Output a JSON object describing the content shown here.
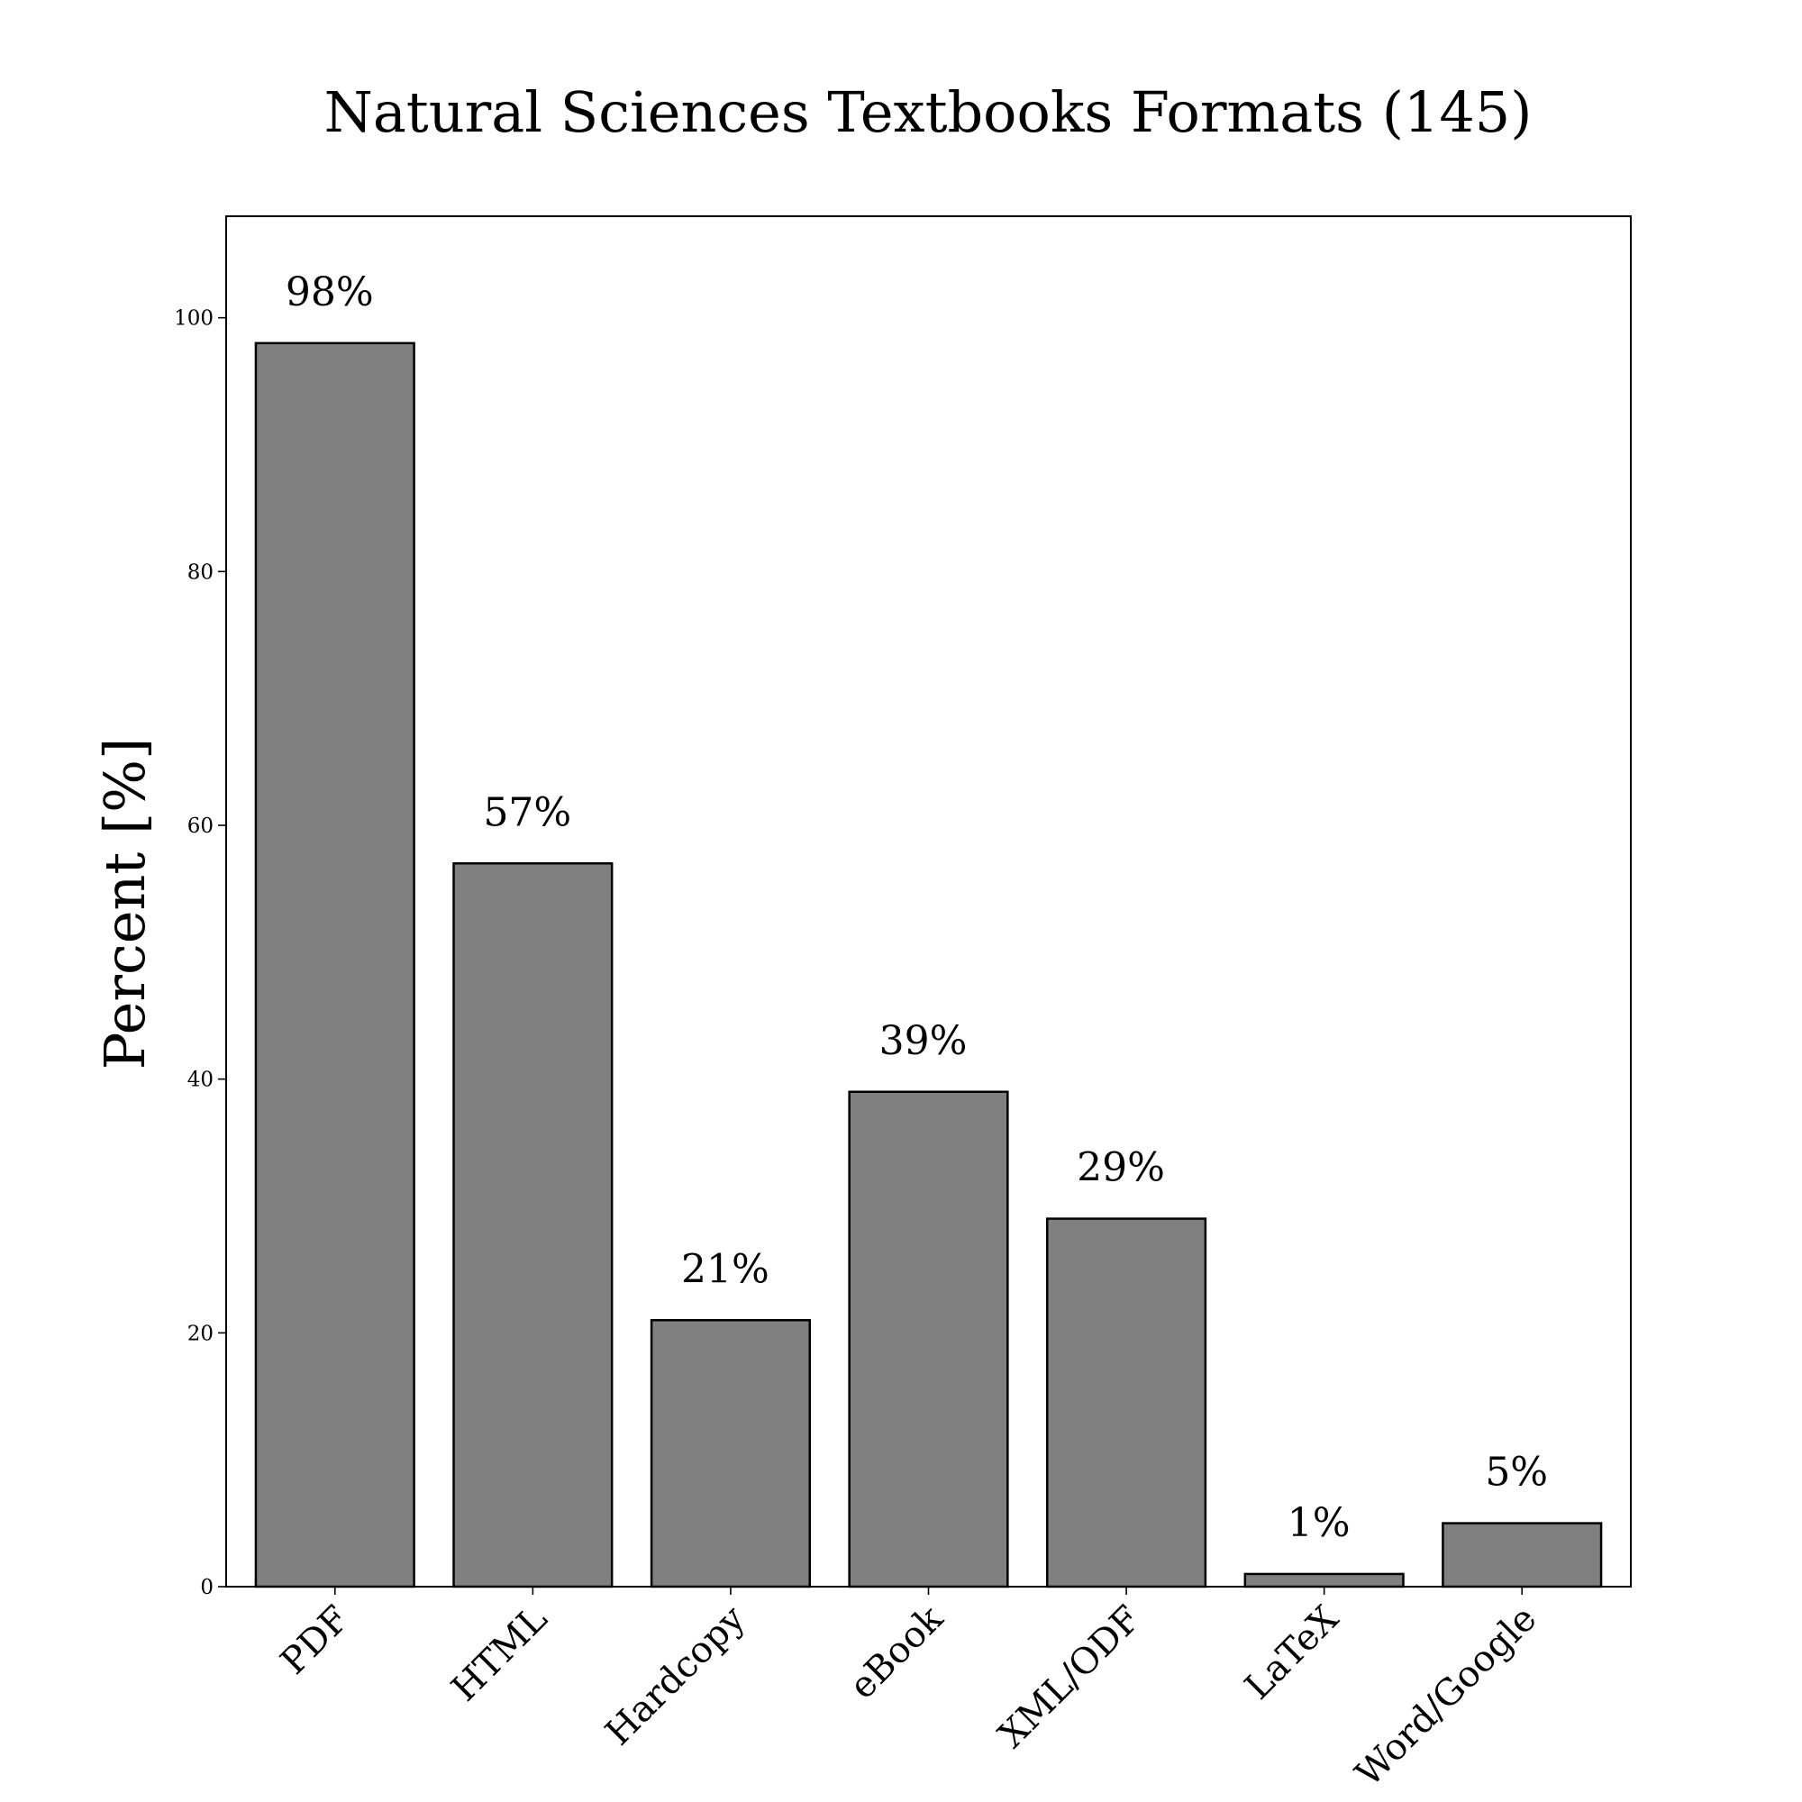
{
  "chart_data": {
    "type": "bar",
    "title": "Natural Sciences Textbooks Formats (145)",
    "xlabel": "",
    "ylabel": "Percent [%]",
    "categories": [
      "PDF",
      "HTML",
      "Hardcopy",
      "eBook",
      "XML/ODF",
      "LaTeX",
      "Word/Google"
    ],
    "values": [
      98,
      57,
      21,
      39,
      29,
      1,
      5
    ],
    "data_labels": [
      "98%",
      "57%",
      "21%",
      "39%",
      "29%",
      "1%",
      "5%"
    ],
    "yticks": [
      0,
      20,
      40,
      60,
      80,
      100
    ],
    "ylim": [
      0,
      108
    ],
    "grid": false,
    "bar_color": "#808080",
    "edge_color": "#000000"
  }
}
